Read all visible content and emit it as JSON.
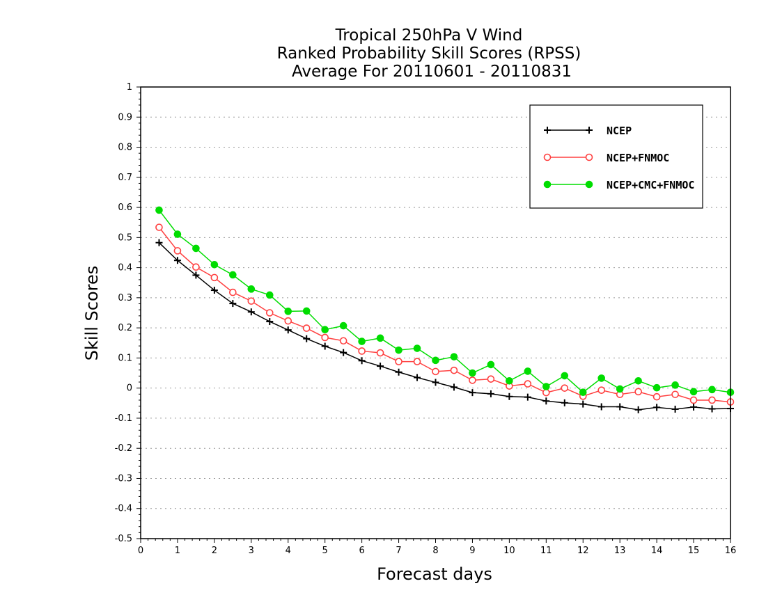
{
  "chart_data": {
    "type": "line",
    "title": [
      "Tropical 250hPa V Wind",
      "Ranked Probability Skill Scores (RPSS)",
      "Average For 20110601 - 20110831"
    ],
    "xlabel": "Forecast days",
    "ylabel": "Skill Scores",
    "xlim": [
      0,
      16
    ],
    "ylim": [
      -0.5,
      1
    ],
    "x_ticks": [
      "0",
      "1",
      "2",
      "3",
      "4",
      "5",
      "6",
      "7",
      "8",
      "9",
      "10",
      "11",
      "12",
      "13",
      "14",
      "15",
      "16"
    ],
    "y_ticks": [
      "1",
      "0.9",
      "0.8",
      "0.7",
      "0.6",
      "0.5",
      "0.4",
      "0.3",
      "0.2",
      "0.1",
      "0",
      "-0.1",
      "-0.2",
      "-0.3",
      "-0.4",
      "-0.5"
    ],
    "grid": true,
    "legend_position": "top-right",
    "x": [
      0.5,
      1,
      1.5,
      2,
      2.5,
      3,
      3.5,
      4,
      4.5,
      5,
      5.5,
      6,
      6.5,
      7,
      7.5,
      8,
      8.5,
      9,
      9.5,
      10,
      10.5,
      11,
      11.5,
      12,
      12.5,
      13,
      13.5,
      14,
      14.5,
      15,
      15.5,
      16
    ],
    "series": [
      {
        "name": "NCEP",
        "color": "#000000",
        "marker": "plus",
        "values": [
          0.483,
          0.424,
          0.375,
          0.325,
          0.281,
          0.253,
          0.221,
          0.193,
          0.164,
          0.139,
          0.118,
          0.091,
          0.073,
          0.053,
          0.035,
          0.019,
          0.003,
          -0.015,
          -0.019,
          -0.028,
          -0.03,
          -0.043,
          -0.049,
          -0.053,
          -0.062,
          -0.062,
          -0.072,
          -0.064,
          -0.07,
          -0.063,
          -0.069,
          -0.068
        ]
      },
      {
        "name": "NCEP+FNMOC",
        "color": "#ff4040",
        "marker": "open-circle",
        "values": [
          0.534,
          0.456,
          0.402,
          0.367,
          0.318,
          0.289,
          0.25,
          0.223,
          0.199,
          0.168,
          0.157,
          0.123,
          0.117,
          0.088,
          0.088,
          0.055,
          0.059,
          0.026,
          0.03,
          0.007,
          0.014,
          -0.015,
          0.0,
          -0.027,
          -0.007,
          -0.021,
          -0.012,
          -0.029,
          -0.021,
          -0.04,
          -0.04,
          -0.046
        ]
      },
      {
        "name": "NCEP+CMC+FNMOC",
        "color": "#00dd00",
        "marker": "filled-circle",
        "values": [
          0.591,
          0.511,
          0.464,
          0.41,
          0.376,
          0.329,
          0.309,
          0.255,
          0.256,
          0.194,
          0.207,
          0.155,
          0.166,
          0.126,
          0.132,
          0.092,
          0.104,
          0.05,
          0.078,
          0.024,
          0.056,
          0.005,
          0.041,
          -0.014,
          0.033,
          -0.003,
          0.024,
          0.001,
          0.01,
          -0.012,
          -0.005,
          -0.014
        ]
      }
    ]
  }
}
